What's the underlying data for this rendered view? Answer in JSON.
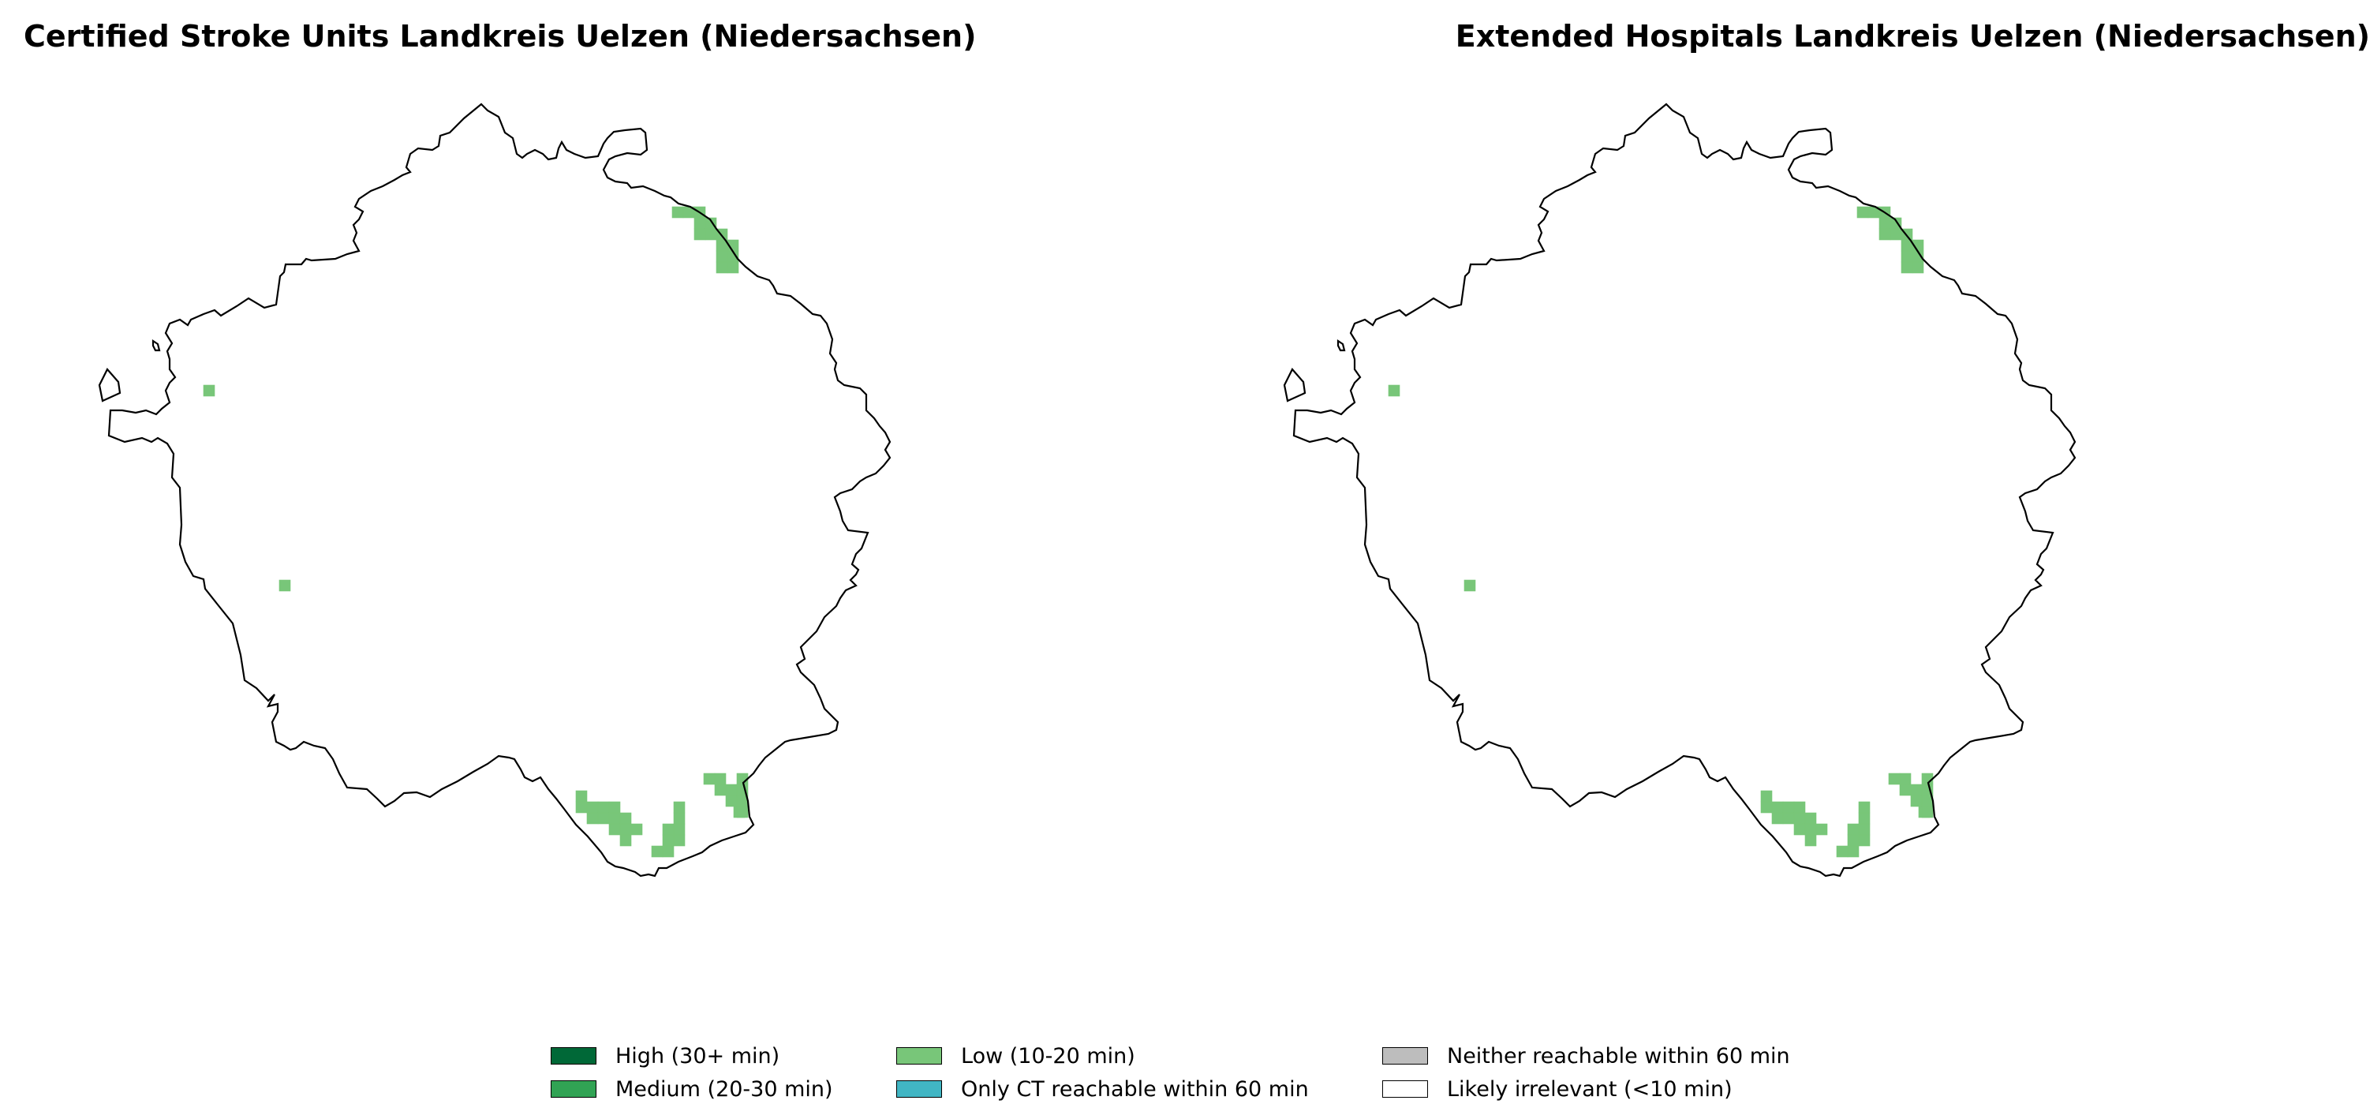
{
  "maps": [
    {
      "title": "Certified Stroke Units Landkreis Uelzen (Niedersachsen)"
    },
    {
      "title": "Extended Hospitals Landkreis Uelzen (Niedersachsen)"
    }
  ],
  "legend": [
    {
      "label": "High (30+ min)",
      "color": "#006837"
    },
    {
      "label": "Medium (20-30 min)",
      "color": "#31a354"
    },
    {
      "label": "Low (10-20 min)",
      "color": "#78c679"
    },
    {
      "label": "Only CT reachable within 60 min",
      "color": "#41b6c4"
    },
    {
      "label": "Neither reachable within 60 min",
      "color": "#bdbdbd"
    },
    {
      "label": "Likely irrelevant (<10 min)",
      "color": "#ffffff"
    }
  ],
  "colors": {
    "outline": "#000000",
    "low_fill": "#78c679"
  }
}
